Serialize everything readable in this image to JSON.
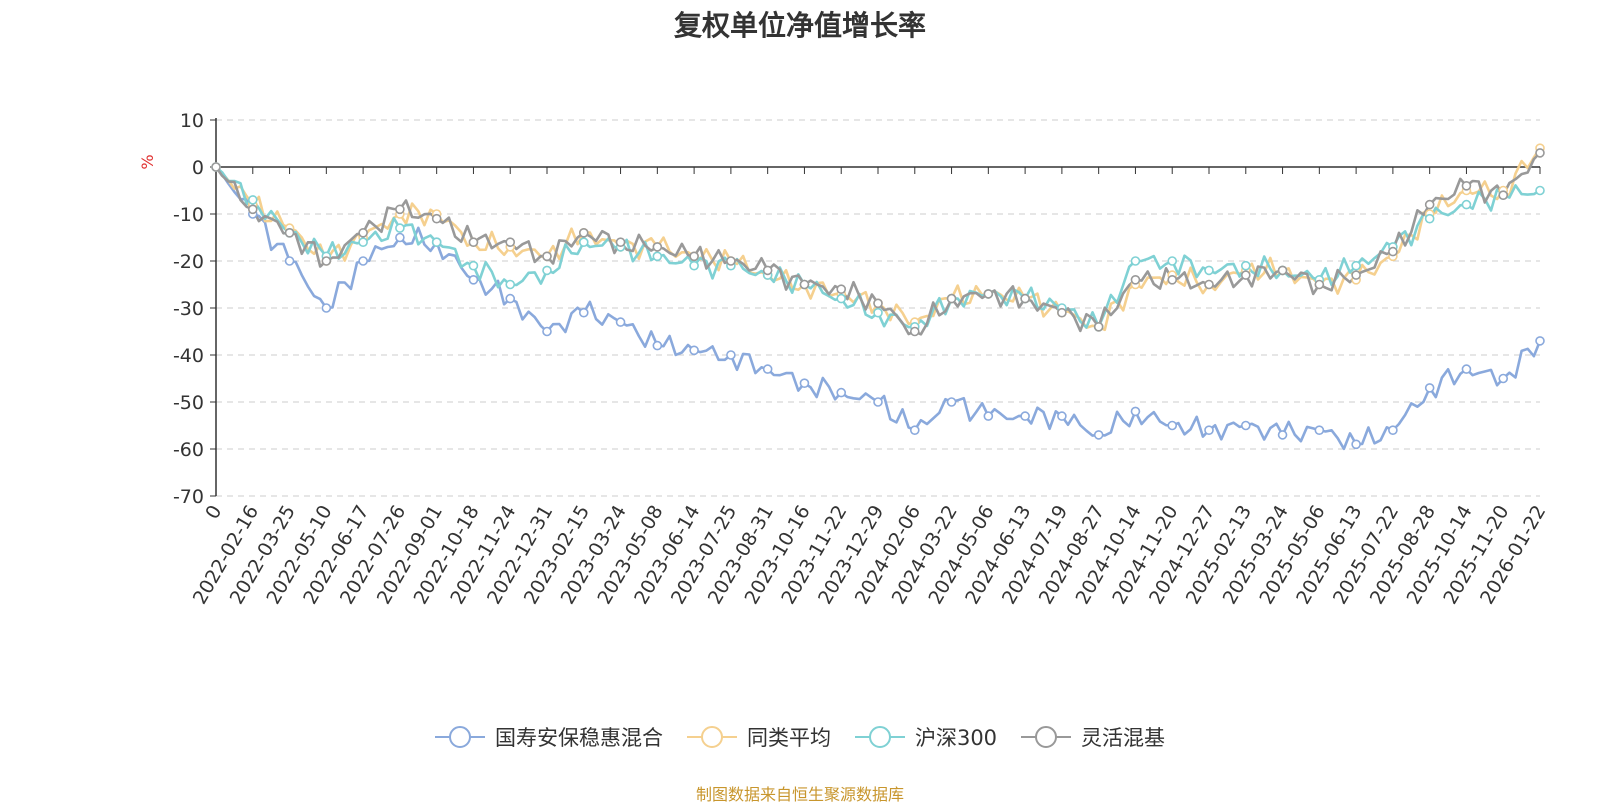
{
  "chart_data": {
    "type": "line",
    "title": "复权单位净值增长率",
    "ylabel": "%",
    "ylim": [
      -70,
      10
    ],
    "yticks": [
      10,
      0,
      -10,
      -20,
      -30,
      -40,
      -50,
      -60,
      -70
    ],
    "grid": true,
    "legend_position": "bottom",
    "categories": [
      "0",
      "2022-02-16",
      "2022-03-25",
      "2022-05-10",
      "2022-06-17",
      "2022-07-26",
      "2022-09-01",
      "2022-10-18",
      "2022-11-24",
      "2022-12-31",
      "2023-02-15",
      "2023-03-24",
      "2023-05-08",
      "2023-06-14",
      "2023-07-25",
      "2023-08-31",
      "2023-10-16",
      "2023-11-22",
      "2023-12-29",
      "2024-02-06",
      "2024-03-22",
      "2024-05-06",
      "2024-06-13",
      "2024-07-19",
      "2024-08-27",
      "2024-10-14",
      "2024-11-20",
      "2024-12-27",
      "2025-02-13",
      "2025-03-24",
      "2025-05-06",
      "2025-06-13",
      "2025-07-22",
      "2025-08-28",
      "2025-10-14",
      "2025-11-20",
      "2026-01-22"
    ],
    "series": [
      {
        "name": "国寿安保稳惠混合",
        "color": "#8aa9dc",
        "values": [
          0,
          -10,
          -20,
          -30,
          -20,
          -15,
          -16,
          -24,
          -28,
          -35,
          -31,
          -33,
          -38,
          -39,
          -40,
          -43,
          -46,
          -48,
          -50,
          -56,
          -50,
          -53,
          -53,
          -53,
          -57,
          -52,
          -55,
          -56,
          -55,
          -57,
          -56,
          -59,
          -56,
          -47,
          -43,
          -45,
          -37
        ]
      },
      {
        "name": "同类平均",
        "color": "#f5d08f",
        "values": [
          0,
          -8,
          -13,
          -20,
          -15,
          -10,
          -10,
          -16,
          -17,
          -19,
          -14,
          -17,
          -17,
          -19,
          -20,
          -23,
          -25,
          -27,
          -29,
          -33,
          -28,
          -27,
          -28,
          -31,
          -34,
          -25,
          -23,
          -25,
          -22,
          -22,
          -25,
          -24,
          -19,
          -10,
          -5,
          -5,
          4
        ]
      },
      {
        "name": "沪深300",
        "color": "#7fd1d4",
        "values": [
          0,
          -7,
          -14,
          -19,
          -16,
          -13,
          -16,
          -21,
          -25,
          -22,
          -16,
          -17,
          -19,
          -21,
          -21,
          -23,
          -25,
          -28,
          -31,
          -34,
          -28,
          -27,
          -28,
          -30,
          -34,
          -20,
          -20,
          -22,
          -21,
          -22,
          -24,
          -21,
          -17,
          -11,
          -8,
          -6,
          -5
        ]
      },
      {
        "name": "灵活混基",
        "color": "#999999",
        "values": [
          0,
          -9,
          -14,
          -20,
          -14,
          -9,
          -11,
          -16,
          -16,
          -19,
          -14,
          -16,
          -17,
          -19,
          -20,
          -22,
          -25,
          -26,
          -29,
          -35,
          -28,
          -27,
          -28,
          -31,
          -34,
          -24,
          -24,
          -25,
          -23,
          -22,
          -25,
          -23,
          -18,
          -8,
          -4,
          -6,
          3
        ]
      }
    ]
  },
  "source_note": "制图数据来自恒生聚源数据库"
}
